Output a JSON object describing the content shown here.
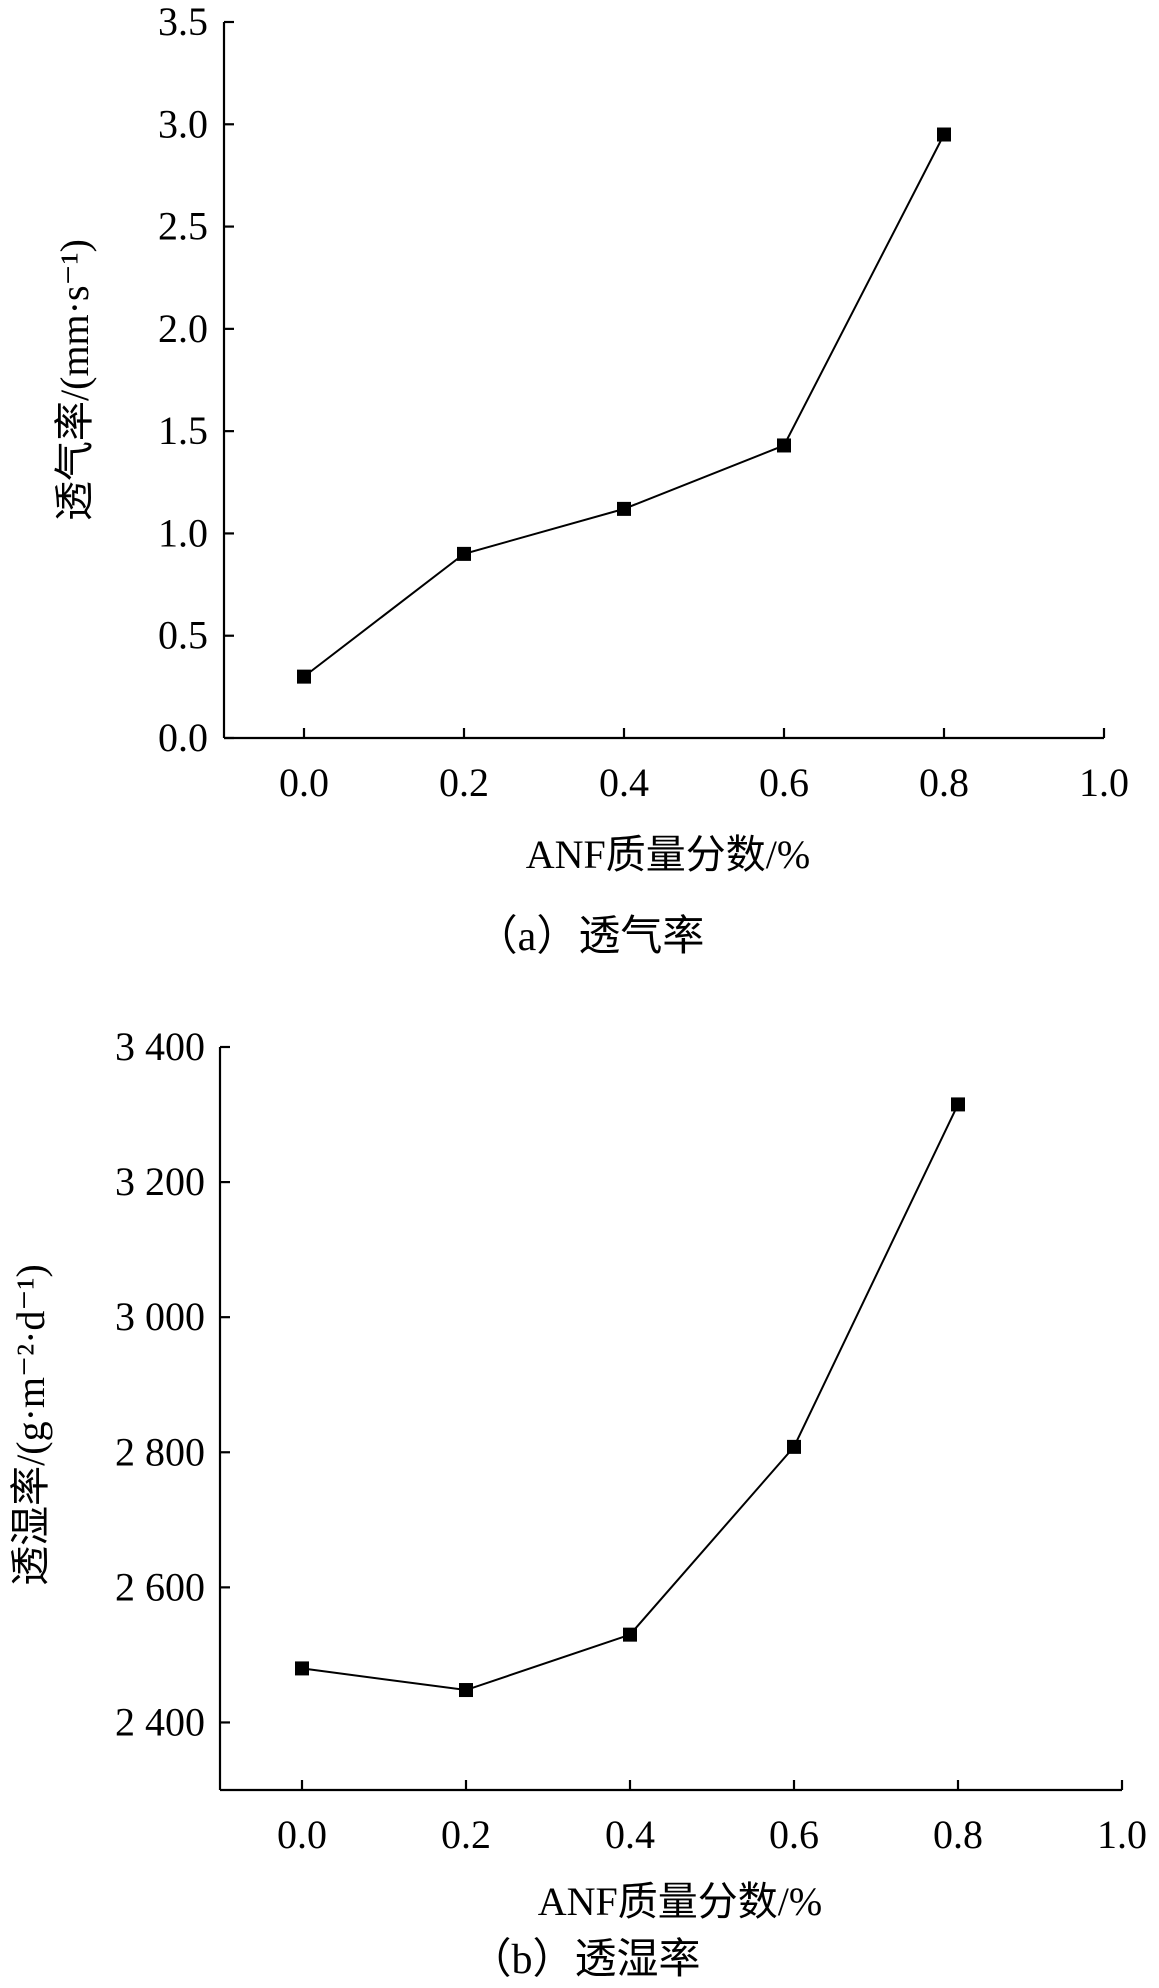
{
  "chart_data": [
    {
      "type": "line",
      "caption": "（a）透气率",
      "xlabel": "ANF质量分数/%",
      "ylabel": "透气率/(mm·s⁻¹)",
      "xlim": [
        -0.1,
        1.0
      ],
      "ylim": [
        0.0,
        3.5
      ],
      "x_ticks": [
        "0.0",
        "0.2",
        "0.4",
        "0.6",
        "0.8",
        "1.0"
      ],
      "y_ticks": [
        "0.0",
        "0.5",
        "1.0",
        "1.5",
        "2.0",
        "2.5",
        "3.0",
        "3.5"
      ],
      "grid": false,
      "series": [
        {
          "x": [
            0.0,
            0.2,
            0.4,
            0.6,
            0.8
          ],
          "values": [
            0.3,
            0.9,
            1.12,
            1.43,
            2.95
          ],
          "marker": "square"
        }
      ]
    },
    {
      "type": "line",
      "caption": "（b）透湿率",
      "xlabel": "ANF质量分数/%",
      "ylabel": "透湿率/(g·m⁻²·d⁻¹)",
      "xlim": [
        -0.1,
        1.0
      ],
      "ylim": [
        2300,
        3400
      ],
      "x_ticks": [
        "0.0",
        "0.2",
        "0.4",
        "0.6",
        "0.8",
        "1.0"
      ],
      "y_ticks": [
        "2 400",
        "2 600",
        "2 800",
        "3 000",
        "3 200",
        "3 400"
      ],
      "grid": false,
      "series": [
        {
          "x": [
            0.0,
            0.2,
            0.4,
            0.6,
            0.8
          ],
          "values": [
            2480,
            2448,
            2530,
            2808,
            3315
          ],
          "marker": "square"
        }
      ]
    }
  ]
}
